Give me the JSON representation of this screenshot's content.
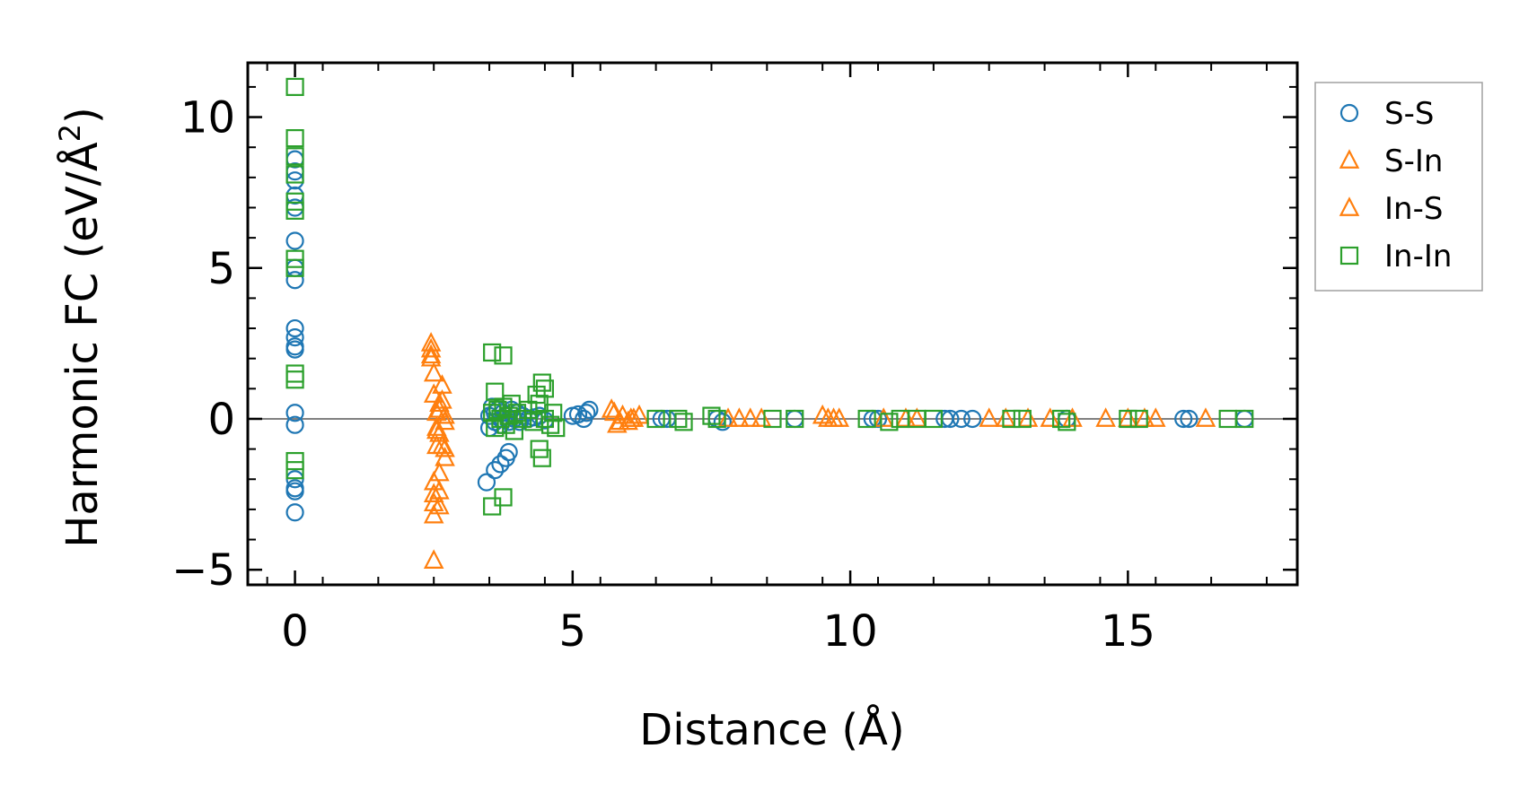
{
  "chart_data": {
    "type": "scatter",
    "title": "",
    "xlabel": "Distance (Å)",
    "ylabel_main": "Harmonic FC (eV/Å",
    "ylabel_sup": "2",
    "ylabel_close": ")",
    "xlim": [
      -0.85,
      18.05
    ],
    "ylim": [
      -5.5,
      11.8
    ],
    "xticks": [
      0,
      5,
      10,
      15
    ],
    "xtick_labels": [
      "0",
      "5",
      "10",
      "15"
    ],
    "yticks": [
      -5,
      0,
      5,
      10
    ],
    "ytick_labels": [
      "−5",
      "0",
      "5",
      "10"
    ],
    "zero_line": 0,
    "legend_position": "outside-right",
    "series": [
      {
        "name": "S-S",
        "marker": "circle",
        "color": "#1f77b4",
        "x": [
          0,
          0,
          0,
          0,
          0,
          0,
          0,
          0,
          0,
          0,
          0,
          0,
          0,
          0,
          0,
          0,
          0,
          0,
          3.45,
          3.5,
          3.5,
          3.55,
          3.6,
          3.6,
          3.65,
          3.7,
          3.7,
          3.75,
          3.8,
          3.85,
          3.9,
          3.95,
          4.0,
          4.05,
          4.1,
          4.2,
          4.3,
          4.4,
          4.5,
          3.6,
          3.7,
          3.8,
          3.85,
          5.0,
          5.1,
          5.2,
          5.25,
          5.3,
          6.6,
          6.7,
          7.6,
          7.7,
          9.0,
          10.4,
          10.5,
          11.7,
          11.8,
          12.0,
          12.2,
          13.9,
          16.0,
          16.1,
          17.1
        ],
        "y": [
          8.6,
          8.2,
          7.9,
          7.4,
          7.0,
          5.9,
          5.0,
          4.6,
          3.0,
          2.7,
          2.4,
          2.3,
          0.2,
          -0.2,
          -2.0,
          -2.3,
          -2.4,
          -3.1,
          -2.1,
          0.1,
          -0.3,
          0.4,
          0.2,
          -0.1,
          0.3,
          0.0,
          -0.2,
          0.2,
          0.1,
          -0.1,
          0.3,
          0.0,
          0.2,
          -0.1,
          0.1,
          0.0,
          0.05,
          0.1,
          -0.05,
          -1.7,
          -1.5,
          -1.3,
          -1.1,
          0.1,
          0.15,
          0.0,
          0.2,
          0.3,
          0.0,
          0.0,
          0.0,
          -0.1,
          0.0,
          0.0,
          0.0,
          0.0,
          0.0,
          0.0,
          0.0,
          0.0,
          0.0,
          0.0,
          0.0
        ]
      },
      {
        "name": "S-In",
        "marker": "triangle",
        "color": "#ff7f0e",
        "x": [
          2.45,
          2.45,
          2.45,
          2.45,
          2.5,
          2.5,
          2.5,
          2.5,
          2.55,
          2.55,
          2.6,
          2.6,
          2.6,
          2.65,
          2.65,
          2.7,
          2.7,
          2.5,
          2.55,
          2.6,
          2.6,
          2.7,
          2.5,
          5.7,
          5.8,
          5.9,
          6.0,
          6.1,
          6.2,
          7.8,
          8.0,
          8.4,
          9.5,
          9.7,
          9.8,
          10.6,
          11.0,
          12.5,
          12.8,
          13.6,
          14.0,
          14.6,
          15.0,
          15.5,
          16.4
        ],
        "y": [
          2.5,
          2.3,
          2.1,
          2.0,
          -3.2,
          -2.8,
          -2.5,
          -2.1,
          -0.3,
          0.2,
          -1.8,
          -2.4,
          -0.5,
          1.1,
          0.6,
          -1.0,
          -0.1,
          0.8,
          -0.9,
          -2.9,
          0.3,
          -1.3,
          -4.7,
          0.3,
          -0.2,
          0.1,
          -0.1,
          0.0,
          0.1,
          0.0,
          0.0,
          0.0,
          0.1,
          0.0,
          0.0,
          0.0,
          0.0,
          0.0,
          0.0,
          0.0,
          0.0,
          0.0,
          0.0,
          0.0,
          0.0
        ]
      },
      {
        "name": "In-S",
        "marker": "triangle",
        "color": "#ff7f0e",
        "x": [
          2.5,
          2.55,
          2.6,
          2.65,
          2.7,
          5.75,
          5.85,
          6.05,
          8.2,
          9.6,
          11.2,
          13.2,
          15.3
        ],
        "y": [
          1.5,
          -0.4,
          0.5,
          -0.9,
          0.1,
          0.2,
          -0.1,
          0.0,
          0.0,
          0.0,
          0.0,
          0.0,
          0.0
        ]
      },
      {
        "name": "In-In",
        "marker": "square",
        "color": "#2ca02c",
        "x": [
          0,
          0,
          0,
          0,
          0,
          0,
          0,
          0,
          0,
          0,
          0,
          0,
          3.55,
          3.6,
          3.6,
          3.65,
          3.7,
          3.75,
          3.8,
          3.85,
          3.9,
          3.95,
          4.0,
          4.1,
          4.2,
          4.3,
          4.35,
          4.4,
          4.45,
          4.5,
          4.6,
          4.65,
          4.7,
          3.55,
          3.75,
          3.55,
          3.75,
          4.4,
          4.45,
          4.5,
          6.5,
          6.9,
          7.0,
          7.5,
          7.6,
          8.6,
          9.0,
          10.3,
          10.7,
          10.9,
          11.2,
          11.5,
          12.9,
          13.1,
          13.8,
          13.9,
          15.0,
          15.2,
          16.8,
          17.1
        ],
        "y": [
          11.0,
          9.3,
          8.7,
          8.1,
          7.2,
          6.9,
          5.3,
          5.0,
          1.5,
          1.3,
          -1.4,
          -1.7,
          0.2,
          0.9,
          -0.3,
          0.3,
          0.0,
          0.4,
          -0.2,
          0.1,
          0.5,
          -0.4,
          0.2,
          0.0,
          0.3,
          -0.1,
          0.8,
          0.5,
          1.2,
          0.0,
          -0.2,
          0.2,
          -0.3,
          2.2,
          2.1,
          -2.9,
          -2.6,
          -1.0,
          -1.3,
          1.0,
          0.0,
          0.0,
          -0.1,
          0.1,
          0.0,
          0.0,
          0.0,
          0.0,
          -0.1,
          0.0,
          0.0,
          0.0,
          0.0,
          0.0,
          0.0,
          -0.1,
          0.0,
          0.0,
          0.0,
          0.0
        ]
      }
    ]
  }
}
